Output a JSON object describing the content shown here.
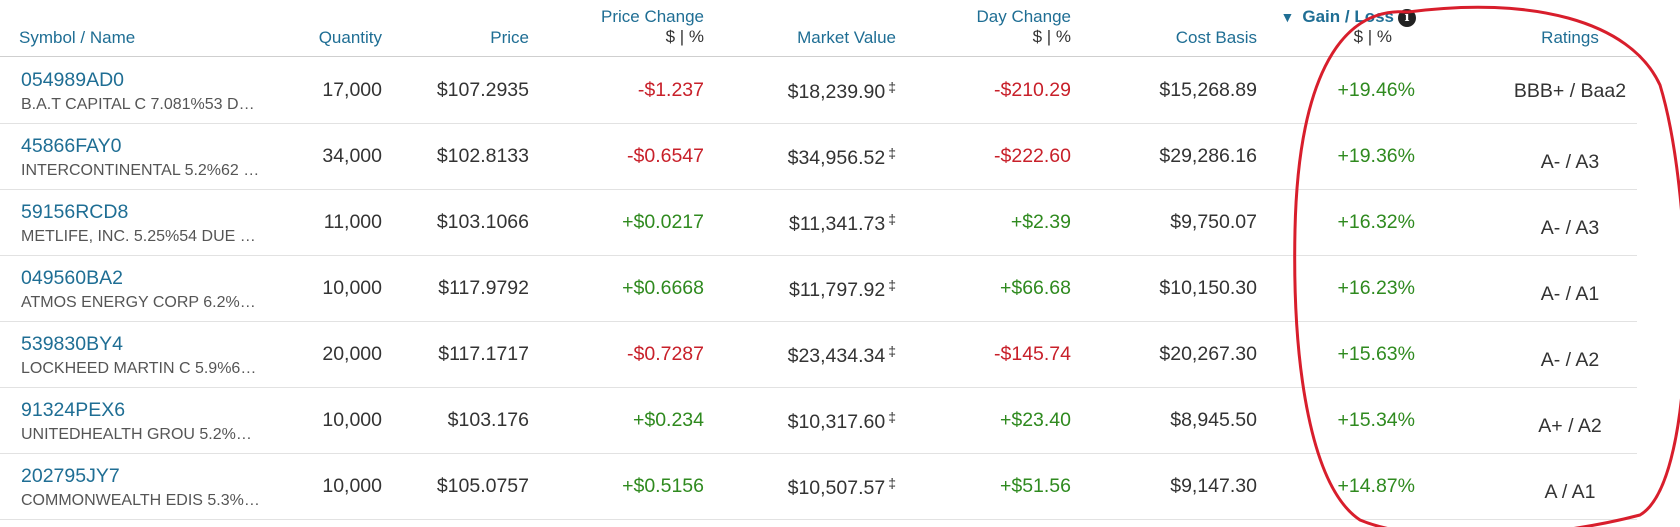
{
  "header": {
    "symbol_name": "Symbol / Name",
    "quantity": "Quantity",
    "price": "Price",
    "price_change": "Price Change",
    "price_change_sub": "$ | %",
    "market_value": "Market Value",
    "day_change": "Day Change",
    "day_change_sub": "$ | %",
    "cost_basis": "Cost Basis",
    "gain_loss": "Gain / Loss",
    "gain_loss_sub": "$ | %",
    "ratings": "Ratings",
    "sort_indicator_icon": "triangle-down-icon",
    "info_icon": "info-icon"
  },
  "rows": [
    {
      "symbol": "054989AD0",
      "name": "B.A.T CAPITAL C 7.081%53 D…",
      "quantity": "17,000",
      "price": "$107.2935",
      "price_change": "-$1.237",
      "market_value": "$18,239.90",
      "day_change": "-$210.29",
      "cost_basis": "$15,268.89",
      "gain_loss": "+19.46%",
      "rating": "BBB+ / Baa2"
    },
    {
      "symbol": "45866FAY0",
      "name": "INTERCONTINENTAL 5.2%62 …",
      "quantity": "34,000",
      "price": "$102.8133",
      "price_change": "-$0.6547",
      "market_value": "$34,956.52",
      "day_change": "-$222.60",
      "cost_basis": "$29,286.16",
      "gain_loss": "+19.36%",
      "rating": "A- / A3"
    },
    {
      "symbol": "59156RCD8",
      "name": "METLIFE, INC. 5.25%54 DUE …",
      "quantity": "11,000",
      "price": "$103.1066",
      "price_change": "+$0.0217",
      "market_value": "$11,341.73",
      "day_change": "+$2.39",
      "cost_basis": "$9,750.07",
      "gain_loss": "+16.32%",
      "rating": "A- / A3"
    },
    {
      "symbol": "049560BA2",
      "name": "ATMOS ENERGY CORP 6.2%…",
      "quantity": "10,000",
      "price": "$117.9792",
      "price_change": "+$0.6668",
      "market_value": "$11,797.92",
      "day_change": "+$66.68",
      "cost_basis": "$10,150.30",
      "gain_loss": "+16.23%",
      "rating": "A- / A1"
    },
    {
      "symbol": "539830BY4",
      "name": "LOCKHEED MARTIN C 5.9%6…",
      "quantity": "20,000",
      "price": "$117.1717",
      "price_change": "-$0.7287",
      "market_value": "$23,434.34",
      "day_change": "-$145.74",
      "cost_basis": "$20,267.30",
      "gain_loss": "+15.63%",
      "rating": "A- / A2"
    },
    {
      "symbol": "91324PEX6",
      "name": "UNITEDHEALTH GROU 5.2%…",
      "quantity": "10,000",
      "price": "$103.176",
      "price_change": "+$0.234",
      "market_value": "$10,317.60",
      "day_change": "+$23.40",
      "cost_basis": "$8,945.50",
      "gain_loss": "+15.34%",
      "rating": "A+ / A2"
    },
    {
      "symbol": "202795JY7",
      "name": "COMMONWEALTH EDIS 5.3%…",
      "quantity": "10,000",
      "price": "$105.0757",
      "price_change": "+$0.5156",
      "market_value": "$10,507.57",
      "day_change": "+$51.56",
      "cost_basis": "$9,147.30",
      "gain_loss": "+14.87%",
      "rating": "A / A1"
    }
  ],
  "dagger_symbol": "‡",
  "colors": {
    "link_blue": "#1f6e94",
    "negative_red": "#c8202a",
    "positive_green": "#2f8a1f",
    "annotation_red": "#d81e2c"
  }
}
